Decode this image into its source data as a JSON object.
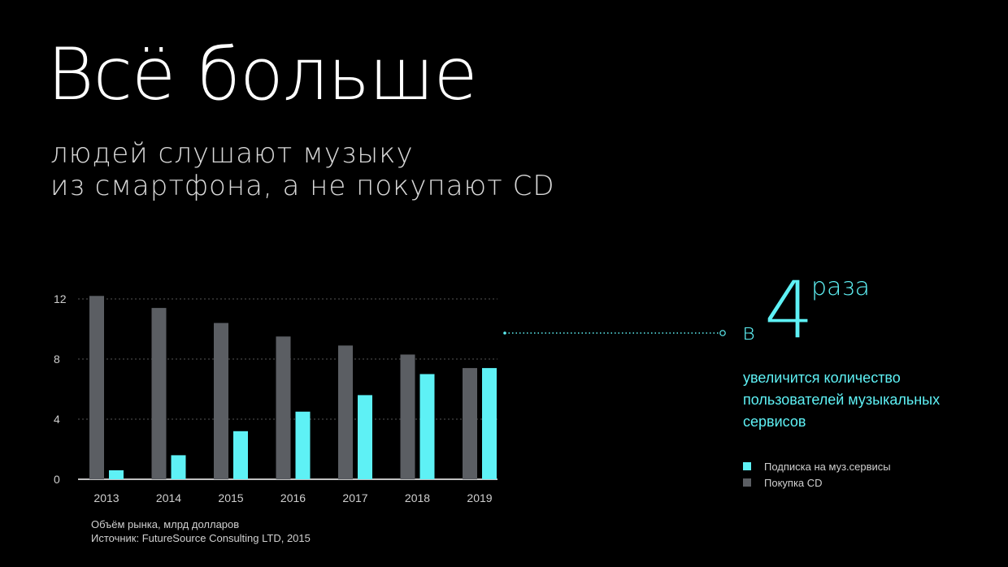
{
  "headline": "Всё больше",
  "subline": [
    "людей слушают музыку",
    "из смартфона, а не покупают CD"
  ],
  "colors": {
    "subscription": "#5ef1f5",
    "cd": "#5b5e63",
    "grid": "#555555",
    "axis_text": "#cfcfcf"
  },
  "chart_data": {
    "type": "bar",
    "categories": [
      "2013",
      "2014",
      "2015",
      "2016",
      "2017",
      "2018",
      "2019"
    ],
    "series": [
      {
        "name": "Покупка CD",
        "values": [
          12.2,
          11.4,
          10.4,
          9.5,
          8.9,
          8.3,
          7.4
        ]
      },
      {
        "name": "Подписка на муз.сервисы",
        "values": [
          0.6,
          1.6,
          3.2,
          4.5,
          5.6,
          7.0,
          7.4
        ]
      }
    ],
    "yticks": [
      0,
      4,
      8,
      12
    ],
    "ylim": [
      0,
      12.4
    ],
    "grid": true,
    "legend_position": "right"
  },
  "callout": {
    "prefix": "в",
    "number": "4",
    "suffix": "раза",
    "text": "увеличится количество пользователей музыкальных сервисов"
  },
  "legend": {
    "subscription": "Подписка на муз.сервисы",
    "cd": "Покупка CD"
  },
  "footnotes": [
    "Объём рынка, млрд долларов",
    "Источник: FutureSource Consulting LTD, 2015"
  ]
}
